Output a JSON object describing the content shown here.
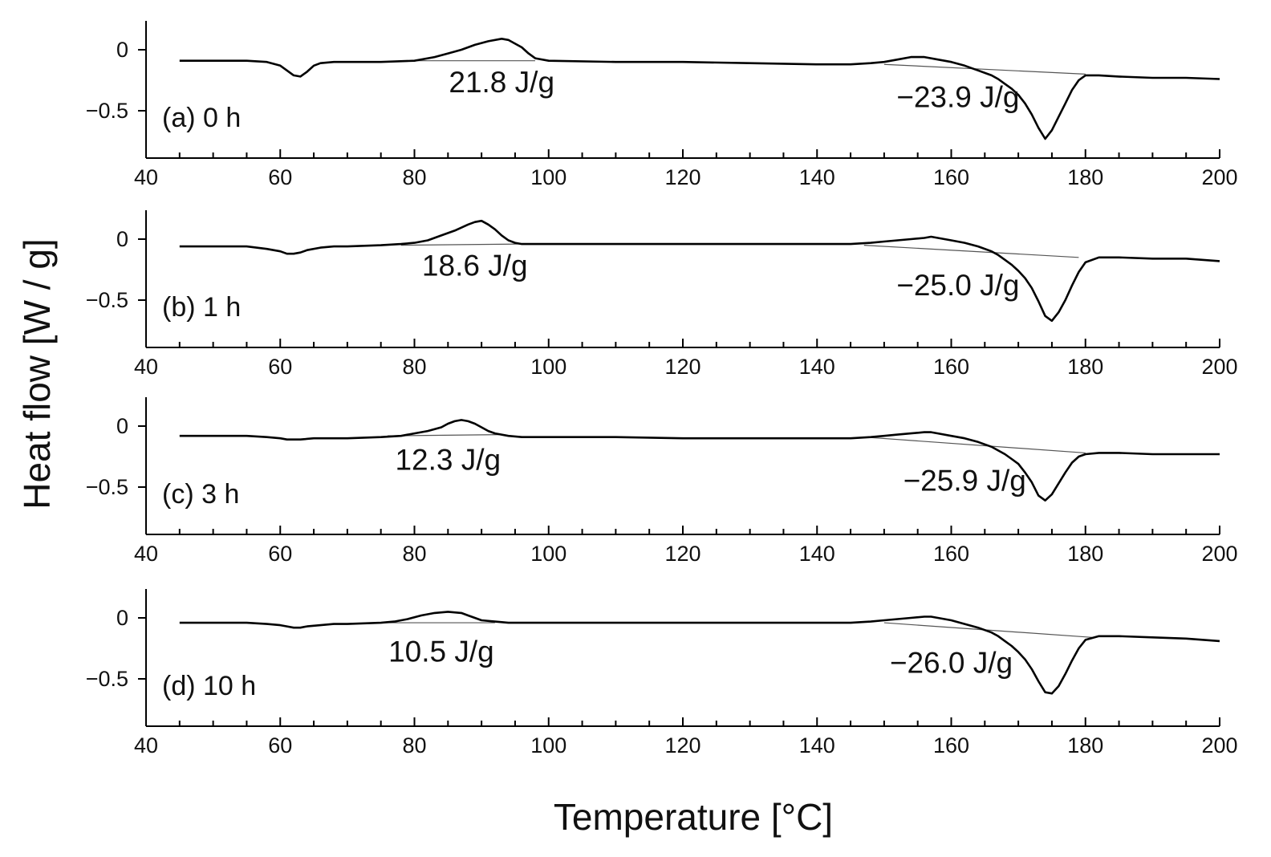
{
  "chart_data": {
    "type": "line",
    "layout": "4 stacked panels sharing the x axis",
    "xlabel": "Temperature [°C]",
    "ylabel": "Heat flow [W / g]",
    "xlim": [
      40,
      200
    ],
    "x_ticks": [
      "40",
      "60",
      "80",
      "100",
      "120",
      "140",
      "160",
      "180",
      "200"
    ],
    "x_minor_step": 5,
    "ylim": [
      -0.9,
      0.25
    ],
    "y_ticks": [
      "0",
      "-0.5"
    ],
    "grid": false,
    "legend": "none",
    "line_color": "#000000",
    "baseline_color": "#555555",
    "panels": [
      {
        "label": "(a) 0 h",
        "annotations": [
          {
            "text": "21.8 J/g",
            "x": 93,
            "y": -0.35
          },
          {
            "text": "−23.9 J/g",
            "x": 161,
            "y": -0.47
          }
        ],
        "x": [
          45,
          50,
          55,
          58,
          60,
          61,
          62,
          63,
          64,
          65,
          66,
          68,
          70,
          75,
          80,
          83,
          85,
          87,
          89,
          91,
          93,
          94,
          95,
          96,
          97,
          98,
          100,
          110,
          120,
          130,
          140,
          145,
          148,
          150,
          152,
          154,
          156,
          158,
          160,
          162,
          164,
          166,
          167,
          168,
          169,
          170,
          171,
          172,
          173,
          174,
          175,
          176,
          177,
          178,
          179,
          180,
          182,
          185,
          190,
          195,
          200
        ],
        "y": [
          -0.09,
          -0.09,
          -0.09,
          -0.1,
          -0.13,
          -0.17,
          -0.21,
          -0.22,
          -0.18,
          -0.13,
          -0.11,
          -0.1,
          -0.1,
          -0.1,
          -0.09,
          -0.06,
          -0.03,
          0.0,
          0.04,
          0.07,
          0.09,
          0.08,
          0.05,
          0.02,
          -0.03,
          -0.07,
          -0.09,
          -0.1,
          -0.1,
          -0.11,
          -0.12,
          -0.12,
          -0.11,
          -0.1,
          -0.08,
          -0.06,
          -0.06,
          -0.08,
          -0.1,
          -0.13,
          -0.17,
          -0.21,
          -0.24,
          -0.28,
          -0.32,
          -0.37,
          -0.44,
          -0.53,
          -0.64,
          -0.73,
          -0.66,
          -0.55,
          -0.44,
          -0.33,
          -0.25,
          -0.21,
          -0.21,
          -0.22,
          -0.23,
          -0.23,
          -0.24
        ],
        "baselines": [
          [
            [
              80,
              -0.09
            ],
            [
              98,
              -0.09
            ]
          ],
          [
            [
              150,
              -0.12
            ],
            [
              180,
              -0.2
            ]
          ]
        ]
      },
      {
        "label": "(b) 1 h",
        "annotations": [
          {
            "text": "18.6 J/g",
            "x": 89,
            "y": -0.3
          },
          {
            "text": "−25.0 J/g",
            "x": 161,
            "y": -0.46
          }
        ],
        "x": [
          45,
          50,
          55,
          58,
          60,
          61,
          62,
          63,
          64,
          66,
          68,
          70,
          75,
          78,
          80,
          82,
          84,
          86,
          88,
          89,
          90,
          91,
          92,
          93,
          94,
          95,
          96,
          100,
          110,
          120,
          130,
          140,
          145,
          148,
          150,
          152,
          154,
          156,
          157,
          158,
          160,
          162,
          164,
          166,
          167,
          168,
          169,
          170,
          171,
          172,
          173,
          174,
          175,
          176,
          177,
          178,
          179,
          180,
          182,
          185,
          190,
          195,
          200
        ],
        "y": [
          -0.06,
          -0.06,
          -0.06,
          -0.08,
          -0.1,
          -0.12,
          -0.12,
          -0.11,
          -0.09,
          -0.07,
          -0.06,
          -0.06,
          -0.05,
          -0.04,
          -0.03,
          -0.01,
          0.03,
          0.07,
          0.12,
          0.14,
          0.15,
          0.12,
          0.08,
          0.03,
          -0.01,
          -0.03,
          -0.04,
          -0.04,
          -0.04,
          -0.04,
          -0.04,
          -0.04,
          -0.04,
          -0.03,
          -0.02,
          -0.01,
          0.0,
          0.01,
          0.02,
          0.01,
          -0.01,
          -0.03,
          -0.06,
          -0.1,
          -0.13,
          -0.17,
          -0.21,
          -0.26,
          -0.32,
          -0.4,
          -0.51,
          -0.63,
          -0.67,
          -0.6,
          -0.5,
          -0.38,
          -0.27,
          -0.19,
          -0.15,
          -0.15,
          -0.16,
          -0.16,
          -0.18
        ],
        "baselines": [
          [
            [
              78,
              -0.05
            ],
            [
              96,
              -0.04
            ]
          ],
          [
            [
              147,
              -0.05
            ],
            [
              179,
              -0.15
            ]
          ]
        ]
      },
      {
        "label": "(c) 3 h",
        "annotations": [
          {
            "text": "12.3 J/g",
            "x": 85,
            "y": -0.36
          },
          {
            "text": "−25.9 J/g",
            "x": 162,
            "y": -0.53
          }
        ],
        "x": [
          45,
          50,
          55,
          58,
          60,
          61,
          62,
          63,
          65,
          68,
          70,
          75,
          78,
          80,
          82,
          84,
          85,
          86,
          87,
          88,
          89,
          90,
          91,
          92,
          94,
          96,
          100,
          110,
          120,
          130,
          140,
          145,
          148,
          150,
          152,
          154,
          156,
          157,
          158,
          160,
          162,
          164,
          166,
          167,
          168,
          169,
          170,
          171,
          172,
          173,
          174,
          175,
          176,
          177,
          178,
          179,
          180,
          182,
          185,
          190,
          195,
          200
        ],
        "y": [
          -0.08,
          -0.08,
          -0.08,
          -0.09,
          -0.1,
          -0.11,
          -0.11,
          -0.11,
          -0.1,
          -0.1,
          -0.1,
          -0.09,
          -0.08,
          -0.06,
          -0.04,
          -0.01,
          0.02,
          0.04,
          0.05,
          0.04,
          0.02,
          -0.01,
          -0.04,
          -0.06,
          -0.08,
          -0.09,
          -0.09,
          -0.09,
          -0.1,
          -0.1,
          -0.1,
          -0.1,
          -0.09,
          -0.08,
          -0.07,
          -0.06,
          -0.05,
          -0.05,
          -0.06,
          -0.08,
          -0.1,
          -0.13,
          -0.17,
          -0.2,
          -0.23,
          -0.27,
          -0.31,
          -0.38,
          -0.46,
          -0.57,
          -0.61,
          -0.56,
          -0.47,
          -0.38,
          -0.3,
          -0.25,
          -0.23,
          -0.22,
          -0.22,
          -0.23,
          -0.23,
          -0.23
        ],
        "baselines": [
          [
            [
              76,
              -0.08
            ],
            [
              93,
              -0.07
            ]
          ],
          [
            [
              147,
              -0.09
            ],
            [
              180,
              -0.22
            ]
          ]
        ]
      },
      {
        "label": "(d) 10 h",
        "annotations": [
          {
            "text": "10.5 J/g",
            "x": 84,
            "y": -0.36
          },
          {
            "text": "−26.0 J/g",
            "x": 160,
            "y": -0.45
          }
        ],
        "x": [
          45,
          50,
          55,
          58,
          60,
          61,
          62,
          63,
          64,
          66,
          68,
          70,
          75,
          77,
          79,
          81,
          83,
          85,
          87,
          88,
          89,
          90,
          92,
          94,
          96,
          100,
          110,
          120,
          130,
          140,
          145,
          148,
          150,
          152,
          154,
          156,
          157,
          158,
          160,
          162,
          164,
          166,
          167,
          168,
          169,
          170,
          171,
          172,
          173,
          174,
          175,
          176,
          177,
          178,
          179,
          180,
          182,
          185,
          190,
          195,
          200
        ],
        "y": [
          -0.04,
          -0.04,
          -0.04,
          -0.05,
          -0.06,
          -0.07,
          -0.08,
          -0.08,
          -0.07,
          -0.06,
          -0.05,
          -0.05,
          -0.04,
          -0.03,
          -0.01,
          0.02,
          0.04,
          0.05,
          0.04,
          0.02,
          0.0,
          -0.02,
          -0.03,
          -0.04,
          -0.04,
          -0.04,
          -0.04,
          -0.04,
          -0.04,
          -0.04,
          -0.04,
          -0.03,
          -0.02,
          -0.01,
          0.0,
          0.01,
          0.01,
          0.0,
          -0.02,
          -0.05,
          -0.08,
          -0.12,
          -0.15,
          -0.19,
          -0.23,
          -0.28,
          -0.34,
          -0.42,
          -0.52,
          -0.61,
          -0.62,
          -0.56,
          -0.46,
          -0.35,
          -0.25,
          -0.18,
          -0.15,
          -0.15,
          -0.16,
          -0.17,
          -0.19
        ],
        "baselines": [
          [
            [
              75,
              -0.04
            ],
            [
              92,
              -0.04
            ]
          ],
          [
            [
              150,
              -0.04
            ],
            [
              181,
              -0.16
            ]
          ]
        ]
      }
    ]
  }
}
